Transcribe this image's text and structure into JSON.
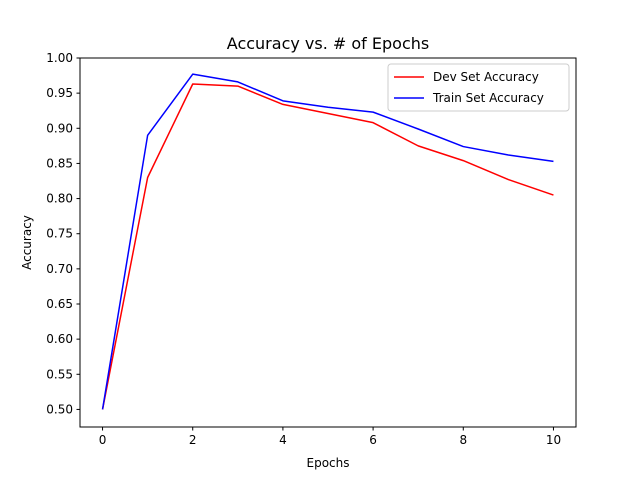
{
  "chart_data": {
    "type": "line",
    "title": "Accuracy vs. # of Epochs",
    "xlabel": "Epochs",
    "ylabel": "Accuracy",
    "xlim": [
      -0.5,
      10.5
    ],
    "ylim": [
      0.475,
      1.0
    ],
    "xticks": [
      "0",
      "2",
      "4",
      "6",
      "8",
      "10"
    ],
    "yticks": [
      "0.50",
      "0.55",
      "0.60",
      "0.65",
      "0.70",
      "0.75",
      "0.80",
      "0.85",
      "0.90",
      "0.95",
      "1.00"
    ],
    "grid": false,
    "legend_position": "top-right",
    "x": [
      0,
      1,
      2,
      3,
      4,
      5,
      6,
      7,
      8,
      9,
      10
    ],
    "series": [
      {
        "name": "Dev Set Accuracy",
        "color": "#ff0000",
        "values": [
          0.5,
          0.83,
          0.963,
          0.96,
          0.934,
          0.921,
          0.908,
          0.875,
          0.854,
          0.827,
          0.805
        ]
      },
      {
        "name": "Train Set Accuracy",
        "color": "#0000ff",
        "values": [
          0.5,
          0.89,
          0.977,
          0.966,
          0.939,
          0.93,
          0.923,
          0.899,
          0.874,
          0.862,
          0.853
        ]
      }
    ]
  }
}
